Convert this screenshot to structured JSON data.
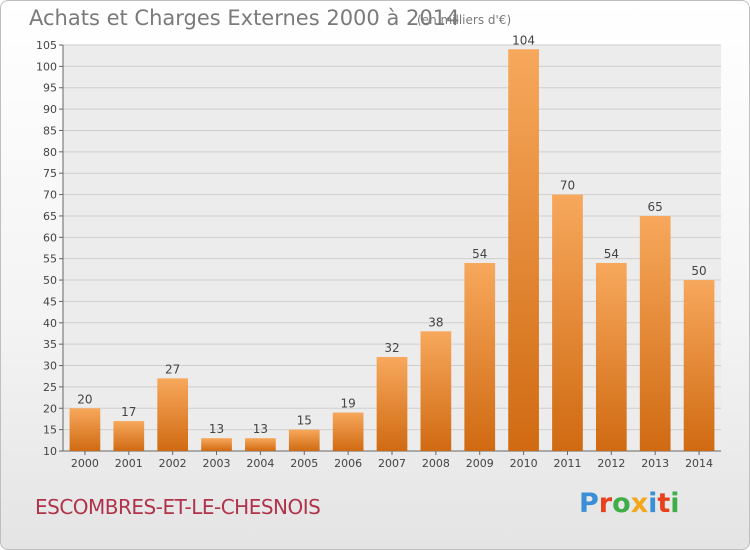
{
  "header": {
    "title": "Achats et Charges Externes 2000 à 2014",
    "unit": "(en milliers d'€)"
  },
  "footer": {
    "commune": "ESCOMBRES-ET-LE-CHESNOIS",
    "logo_text": "Proxiti"
  },
  "colors": {
    "bar_top": "#f7a85c",
    "bar_bottom": "#d06a12",
    "logo_letters": [
      "#3a8fd6",
      "#e8401c",
      "#3fae49",
      "#f3a81c",
      "#3a8fd6",
      "#e8401c",
      "#3fae49"
    ]
  },
  "chart_data": {
    "type": "bar",
    "categories": [
      "2000",
      "2001",
      "2002",
      "2003",
      "2004",
      "2005",
      "2006",
      "2007",
      "2008",
      "2009",
      "2010",
      "2011",
      "2012",
      "2013",
      "2014"
    ],
    "values": [
      20,
      17,
      27,
      13,
      13,
      15,
      19,
      32,
      38,
      54,
      104,
      70,
      54,
      65,
      50
    ],
    "ylim": [
      10,
      105
    ],
    "yticks": [
      10,
      15,
      20,
      25,
      30,
      35,
      40,
      45,
      50,
      55,
      60,
      65,
      70,
      75,
      80,
      85,
      90,
      95,
      100,
      105
    ],
    "grid": true,
    "title": "Achats et Charges Externes 2000 à 2014",
    "xlabel": "",
    "ylabel": ""
  }
}
